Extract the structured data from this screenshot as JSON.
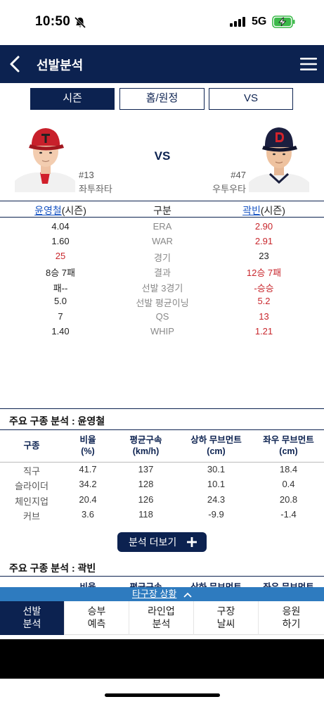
{
  "status": {
    "time": "10:50",
    "network": "5G"
  },
  "header": {
    "title": "선발분석"
  },
  "tabs": [
    {
      "label": "시즌",
      "active": true
    },
    {
      "label": "홈/원정",
      "active": false
    },
    {
      "label": "VS",
      "active": false
    }
  ],
  "matchup": {
    "vs": "VS",
    "left": {
      "number": "#13",
      "hand": "좌투좌타",
      "name": "윤영철",
      "suffix": "(시즌)"
    },
    "right": {
      "number": "#47",
      "hand": "우투우타",
      "name": "곽빈",
      "suffix": "(시즌)"
    }
  },
  "stats": {
    "center_header": "구분",
    "rows": [
      {
        "label": "ERA",
        "left": "4.04",
        "right": "2.90"
      },
      {
        "label": "WAR",
        "left": "1.60",
        "right": "2.91"
      },
      {
        "label": "경기",
        "left": "25",
        "right": "23"
      },
      {
        "label": "결과",
        "left": "8승 7패",
        "right": "12승 7패"
      },
      {
        "label": "선발 3경기",
        "left": "패--",
        "right": "-승승"
      },
      {
        "label": "선발 평균이닝",
        "left": "5.0",
        "right": "5.2"
      },
      {
        "label": "QS",
        "left": "7",
        "right": "13"
      },
      {
        "label": "WHIP",
        "left": "1.40",
        "right": "1.21"
      }
    ]
  },
  "pitch_analysis": {
    "title_left": "주요 구종 분석 : 윤영철",
    "title_right": "주요 구종 분석 : 곽빈",
    "headers": {
      "type": "구종",
      "ratio": [
        "비율",
        "(%)"
      ],
      "speed": [
        "평균구속",
        "(km/h)"
      ],
      "vert": [
        "상하 무브먼트",
        "(cm)"
      ],
      "horiz": [
        "좌우 무브먼트",
        "(cm)"
      ]
    },
    "rows": [
      {
        "type": "직구",
        "ratio": "41.7",
        "speed": "137",
        "vert": "30.1",
        "horiz": "18.4"
      },
      {
        "type": "슬라이더",
        "ratio": "34.2",
        "speed": "128",
        "vert": "10.1",
        "horiz": "0.4"
      },
      {
        "type": "체인지업",
        "ratio": "20.4",
        "speed": "126",
        "vert": "24.3",
        "horiz": "20.8"
      },
      {
        "type": "커브",
        "ratio": "3.6",
        "speed": "118",
        "vert": "-9.9",
        "horiz": "-1.4"
      }
    ],
    "more_button": "분석 더보기"
  },
  "bottom": {
    "situation": "타구장 상황",
    "nav": [
      {
        "line1": "선발",
        "line2": "분석",
        "active": true
      },
      {
        "line1": "승부",
        "line2": "예측",
        "active": false
      },
      {
        "line1": "라인업",
        "line2": "분석",
        "active": false
      },
      {
        "line1": "구장",
        "line2": "날씨",
        "active": false
      },
      {
        "line1": "응원",
        "line2": "하기",
        "active": false
      }
    ]
  },
  "colors": {
    "navy": "#0c2250",
    "red": "#c8262c",
    "link": "#1a56c4",
    "situation_bar": "#2e7bbf"
  }
}
